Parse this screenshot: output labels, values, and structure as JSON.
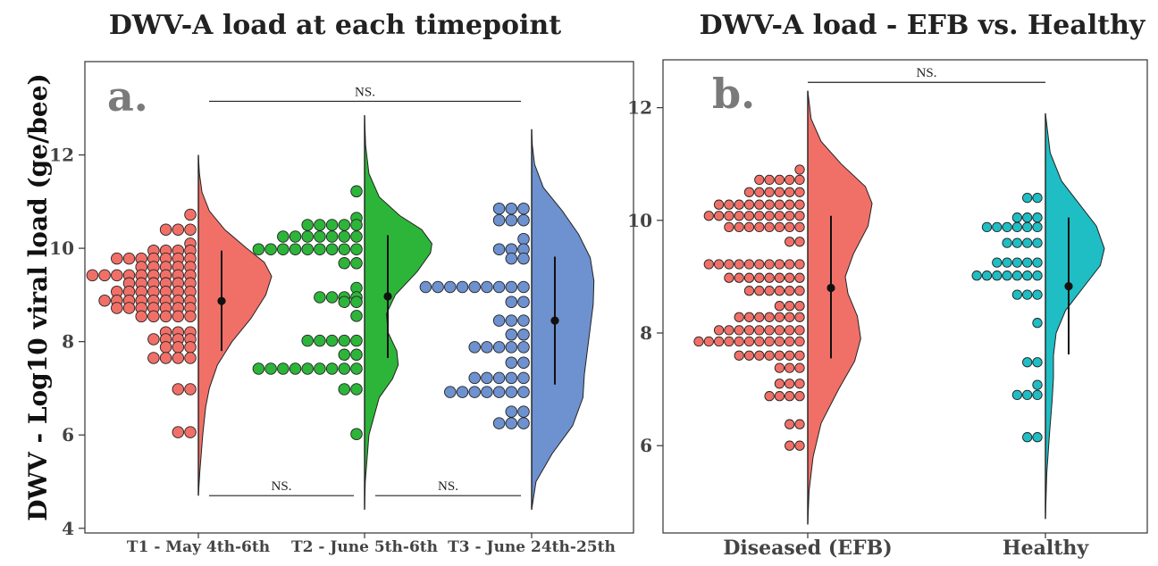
{
  "ylabel": "DWV - Log10 viral load (ge/bee)",
  "chart_data": [
    {
      "type": "raincloud",
      "panel_label": "a.",
      "title": "DWV-A load at each timepoint",
      "ylabel": "DWV - Log10 viral load (ge/bee)",
      "ylim": [
        3.9,
        14.0
      ],
      "yticks": [
        4,
        6,
        8,
        10,
        12
      ],
      "grid": false,
      "colors": [
        "#f07068",
        "#2db53a",
        "#6e91cf"
      ],
      "groups": [
        {
          "name": "T1 - May 4th-6th",
          "mean": 8.87,
          "ci": [
            7.8,
            9.95
          ],
          "range": [
            4.7,
            12.0
          ],
          "points": [
            {
              "y": 10.72,
              "n": 1
            },
            {
              "y": 10.4,
              "n": 3
            },
            {
              "y": 10.1,
              "n": 1
            },
            {
              "y": 9.95,
              "n": 4
            },
            {
              "y": 9.78,
              "n": 7
            },
            {
              "y": 9.6,
              "n": 5
            },
            {
              "y": 9.42,
              "n": 9
            },
            {
              "y": 9.25,
              "n": 6
            },
            {
              "y": 9.07,
              "n": 7
            },
            {
              "y": 8.88,
              "n": 8
            },
            {
              "y": 8.72,
              "n": 7
            },
            {
              "y": 8.54,
              "n": 5
            },
            {
              "y": 8.2,
              "n": 3
            },
            {
              "y": 8.05,
              "n": 4
            },
            {
              "y": 7.88,
              "n": 3
            },
            {
              "y": 7.65,
              "n": 4
            },
            {
              "y": 6.98,
              "n": 2
            },
            {
              "y": 6.06,
              "n": 2
            }
          ],
          "density": [
            [
              4.7,
              0.0
            ],
            [
              5.2,
              0.02
            ],
            [
              6.0,
              0.06
            ],
            [
              6.6,
              0.1
            ],
            [
              7.0,
              0.15
            ],
            [
              7.5,
              0.26
            ],
            [
              8.0,
              0.46
            ],
            [
              8.5,
              0.72
            ],
            [
              9.0,
              0.92
            ],
            [
              9.4,
              1.0
            ],
            [
              9.7,
              0.9
            ],
            [
              10.0,
              0.66
            ],
            [
              10.4,
              0.36
            ],
            [
              10.8,
              0.15
            ],
            [
              11.2,
              0.05
            ],
            [
              11.6,
              0.015
            ],
            [
              12.0,
              0.0
            ]
          ]
        },
        {
          "name": "T2 - June 5th-6th",
          "mean": 8.97,
          "ci": [
            7.65,
            10.28
          ],
          "range": [
            4.4,
            12.85
          ],
          "points": [
            {
              "y": 11.22,
              "n": 1
            },
            {
              "y": 10.65,
              "n": 1
            },
            {
              "y": 10.5,
              "n": 5
            },
            {
              "y": 10.25,
              "n": 7
            },
            {
              "y": 9.98,
              "n": 9
            },
            {
              "y": 9.68,
              "n": 2
            },
            {
              "y": 9.15,
              "n": 1
            },
            {
              "y": 8.95,
              "n": 4
            },
            {
              "y": 8.85,
              "n": 2
            },
            {
              "y": 8.55,
              "n": 1
            },
            {
              "y": 8.02,
              "n": 5
            },
            {
              "y": 7.72,
              "n": 2
            },
            {
              "y": 7.42,
              "n": 9
            },
            {
              "y": 6.98,
              "n": 2
            },
            {
              "y": 6.02,
              "n": 1
            }
          ],
          "density": [
            [
              4.4,
              0.0
            ],
            [
              5.0,
              0.01
            ],
            [
              6.0,
              0.06
            ],
            [
              6.8,
              0.2
            ],
            [
              7.2,
              0.38
            ],
            [
              7.5,
              0.46
            ],
            [
              7.8,
              0.44
            ],
            [
              8.2,
              0.32
            ],
            [
              8.6,
              0.3
            ],
            [
              9.0,
              0.42
            ],
            [
              9.5,
              0.72
            ],
            [
              9.9,
              0.9
            ],
            [
              10.1,
              0.92
            ],
            [
              10.4,
              0.78
            ],
            [
              10.7,
              0.48
            ],
            [
              11.1,
              0.2
            ],
            [
              11.6,
              0.06
            ],
            [
              12.2,
              0.015
            ],
            [
              12.85,
              0.0
            ]
          ]
        },
        {
          "name": "T3 - June 24th-25th",
          "mean": 8.45,
          "ci": [
            7.08,
            9.82
          ],
          "range": [
            4.4,
            12.55
          ],
          "points": [
            {
              "y": 10.85,
              "n": 3
            },
            {
              "y": 10.6,
              "n": 3
            },
            {
              "y": 10.2,
              "n": 1
            },
            {
              "y": 9.98,
              "n": 3
            },
            {
              "y": 9.78,
              "n": 2
            },
            {
              "y": 9.17,
              "n": 9
            },
            {
              "y": 8.85,
              "n": 2
            },
            {
              "y": 8.45,
              "n": 3
            },
            {
              "y": 8.15,
              "n": 2
            },
            {
              "y": 7.88,
              "n": 5
            },
            {
              "y": 7.55,
              "n": 2
            },
            {
              "y": 7.22,
              "n": 5
            },
            {
              "y": 6.92,
              "n": 7
            },
            {
              "y": 6.5,
              "n": 2
            },
            {
              "y": 6.25,
              "n": 3
            }
          ],
          "density": [
            [
              4.4,
              0.0
            ],
            [
              5.0,
              0.06
            ],
            [
              5.6,
              0.28
            ],
            [
              6.2,
              0.56
            ],
            [
              6.8,
              0.7
            ],
            [
              7.3,
              0.72
            ],
            [
              7.8,
              0.76
            ],
            [
              8.3,
              0.8
            ],
            [
              8.8,
              0.84
            ],
            [
              9.3,
              0.85
            ],
            [
              9.8,
              0.8
            ],
            [
              10.3,
              0.64
            ],
            [
              10.8,
              0.42
            ],
            [
              11.3,
              0.16
            ],
            [
              11.8,
              0.04
            ],
            [
              12.2,
              0.01
            ],
            [
              12.55,
              0.0
            ]
          ]
        }
      ],
      "brackets": [
        {
          "from": 0,
          "to": 2,
          "y": 13.15,
          "label": "NS."
        },
        {
          "from": 0,
          "to": 1,
          "y": 4.7,
          "label": "NS."
        },
        {
          "from": 1,
          "to": 2,
          "y": 4.7,
          "label": "NS."
        }
      ]
    },
    {
      "type": "raincloud",
      "panel_label": "b.",
      "title": "DWV-A load - EFB vs. Healthy",
      "ylim": [
        4.45,
        12.85
      ],
      "yticks": [
        6,
        8,
        10,
        12
      ],
      "grid": false,
      "colors": [
        "#f07068",
        "#1fbdc4"
      ],
      "groups": [
        {
          "name": "Diseased (EFB)",
          "mean": 8.8,
          "ci": [
            7.55,
            10.08
          ],
          "range": [
            4.6,
            12.3
          ],
          "points": [
            {
              "y": 10.9,
              "n": 1
            },
            {
              "y": 10.72,
              "n": 5
            },
            {
              "y": 10.5,
              "n": 6
            },
            {
              "y": 10.28,
              "n": 9
            },
            {
              "y": 10.08,
              "n": 10
            },
            {
              "y": 9.88,
              "n": 8
            },
            {
              "y": 9.62,
              "n": 2
            },
            {
              "y": 9.22,
              "n": 10
            },
            {
              "y": 8.98,
              "n": 8
            },
            {
              "y": 8.75,
              "n": 6
            },
            {
              "y": 8.48,
              "n": 3
            },
            {
              "y": 8.28,
              "n": 7
            },
            {
              "y": 8.05,
              "n": 9
            },
            {
              "y": 7.85,
              "n": 11
            },
            {
              "y": 7.6,
              "n": 7
            },
            {
              "y": 7.38,
              "n": 3
            },
            {
              "y": 7.1,
              "n": 3
            },
            {
              "y": 6.88,
              "n": 4
            },
            {
              "y": 6.38,
              "n": 2
            },
            {
              "y": 6.0,
              "n": 2
            }
          ],
          "density": [
            [
              4.6,
              0.0
            ],
            [
              5.2,
              0.02
            ],
            [
              5.8,
              0.08
            ],
            [
              6.4,
              0.2
            ],
            [
              7.0,
              0.46
            ],
            [
              7.5,
              0.7
            ],
            [
              7.9,
              0.79
            ],
            [
              8.3,
              0.74
            ],
            [
              8.7,
              0.6
            ],
            [
              9.0,
              0.56
            ],
            [
              9.4,
              0.68
            ],
            [
              9.9,
              0.9
            ],
            [
              10.3,
              0.96
            ],
            [
              10.6,
              0.86
            ],
            [
              11.0,
              0.5
            ],
            [
              11.4,
              0.2
            ],
            [
              11.8,
              0.05
            ],
            [
              12.3,
              0.0
            ]
          ]
        },
        {
          "name": "Healthy",
          "mean": 8.83,
          "ci": [
            7.62,
            10.05
          ],
          "range": [
            4.7,
            11.9
          ],
          "points": [
            {
              "y": 10.4,
              "n": 2
            },
            {
              "y": 10.05,
              "n": 3
            },
            {
              "y": 9.88,
              "n": 6
            },
            {
              "y": 9.6,
              "n": 4
            },
            {
              "y": 9.25,
              "n": 5
            },
            {
              "y": 9.02,
              "n": 7
            },
            {
              "y": 8.68,
              "n": 3
            },
            {
              "y": 8.18,
              "n": 1
            },
            {
              "y": 7.48,
              "n": 2
            },
            {
              "y": 7.08,
              "n": 1
            },
            {
              "y": 6.9,
              "n": 3
            },
            {
              "y": 6.15,
              "n": 2
            }
          ],
          "density": [
            [
              4.7,
              0.0
            ],
            [
              5.5,
              0.02
            ],
            [
              6.2,
              0.06
            ],
            [
              6.8,
              0.1
            ],
            [
              7.2,
              0.12
            ],
            [
              7.6,
              0.12
            ],
            [
              8.0,
              0.16
            ],
            [
              8.4,
              0.3
            ],
            [
              8.8,
              0.56
            ],
            [
              9.2,
              0.82
            ],
            [
              9.5,
              0.88
            ],
            [
              9.9,
              0.76
            ],
            [
              10.3,
              0.5
            ],
            [
              10.7,
              0.24
            ],
            [
              11.2,
              0.07
            ],
            [
              11.9,
              0.0
            ]
          ]
        }
      ],
      "brackets": [
        {
          "from": 0,
          "to": 1,
          "y": 12.45,
          "label": "NS."
        }
      ]
    }
  ]
}
